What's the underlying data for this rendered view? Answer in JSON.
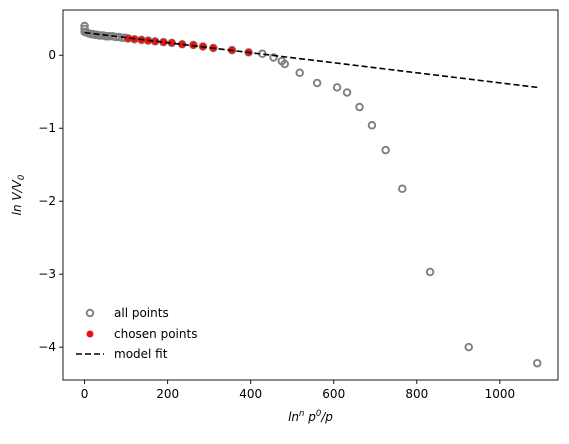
{
  "chart_data": {
    "type": "scatter",
    "xlabel": "ln^n p^0/p",
    "ylabel": "ln V/V_0",
    "xlim": [
      -52,
      1140
    ],
    "ylim": [
      -4.45,
      0.62
    ],
    "xticks": [
      0,
      200,
      400,
      600,
      800,
      1000
    ],
    "yticks": [
      0,
      -1,
      -2,
      -3,
      -4
    ],
    "xtick_labels": [
      "0",
      "200",
      "400",
      "600",
      "800",
      "1000"
    ],
    "ytick_labels": [
      "0",
      "−1",
      "−2",
      "−3",
      "−4"
    ],
    "legend_position": "lower-left",
    "grid": false,
    "colors": {
      "all_points": "#808080",
      "chosen_points": "#ee1111",
      "model_fit": "#000000"
    },
    "series": [
      {
        "name": "all points",
        "kind": "hollow-scatter",
        "points": [
          [
            0,
            0.4
          ],
          [
            0,
            0.36
          ],
          [
            0,
            0.32
          ],
          [
            5,
            0.31
          ],
          [
            10,
            0.3
          ],
          [
            15,
            0.29
          ],
          [
            20,
            0.29
          ],
          [
            25,
            0.28
          ],
          [
            30,
            0.28
          ],
          [
            35,
            0.27
          ],
          [
            40,
            0.27
          ],
          [
            45,
            0.27
          ],
          [
            50,
            0.26
          ],
          [
            55,
            0.26
          ],
          [
            60,
            0.26
          ],
          [
            68,
            0.26
          ],
          [
            75,
            0.25
          ],
          [
            82,
            0.25
          ],
          [
            90,
            0.24
          ],
          [
            98,
            0.24
          ],
          [
            105,
            0.23
          ],
          [
            120,
            0.22
          ],
          [
            137,
            0.21
          ],
          [
            153,
            0.2
          ],
          [
            170,
            0.19
          ],
          [
            190,
            0.18
          ],
          [
            210,
            0.17
          ],
          [
            235,
            0.15
          ],
          [
            262,
            0.14
          ],
          [
            285,
            0.12
          ],
          [
            310,
            0.1
          ],
          [
            355,
            0.07
          ],
          [
            395,
            0.04
          ],
          [
            428,
            0.02
          ],
          [
            455,
            -0.03
          ],
          [
            475,
            -0.08
          ],
          [
            482,
            -0.12
          ],
          [
            518,
            -0.24
          ],
          [
            560,
            -0.38
          ],
          [
            608,
            -0.44
          ],
          [
            632,
            -0.51
          ],
          [
            662,
            -0.71
          ],
          [
            692,
            -0.96
          ],
          [
            725,
            -1.3
          ],
          [
            765,
            -1.83
          ],
          [
            832,
            -2.97
          ],
          [
            925,
            -4.0
          ],
          [
            1090,
            -4.22
          ]
        ]
      },
      {
        "name": "chosen points",
        "kind": "filled-scatter",
        "points": [
          [
            105,
            0.23
          ],
          [
            120,
            0.22
          ],
          [
            137,
            0.21
          ],
          [
            153,
            0.2
          ],
          [
            170,
            0.19
          ],
          [
            190,
            0.18
          ],
          [
            210,
            0.17
          ],
          [
            235,
            0.15
          ],
          [
            262,
            0.14
          ],
          [
            285,
            0.12
          ],
          [
            310,
            0.1
          ],
          [
            355,
            0.07
          ],
          [
            395,
            0.04
          ]
        ]
      },
      {
        "name": "model fit",
        "kind": "dashed-line",
        "points": [
          [
            0,
            0.31
          ],
          [
            1090,
            -0.44
          ]
        ]
      }
    ]
  }
}
